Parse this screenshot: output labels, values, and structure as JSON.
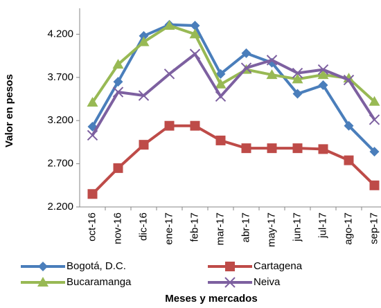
{
  "chart_data": {
    "type": "line",
    "x_label": "Meses y mercados",
    "y_label": "Valor en pesos",
    "categories": [
      "oct-16",
      "nov-16",
      "dic-16",
      "ene-17",
      "feb-17",
      "mar-17",
      "abr-17",
      "may-17",
      "jun-17",
      "jul-17",
      "ago-17",
      "sep-17"
    ],
    "series": [
      {
        "name": "Bogotá, D.C.",
        "color": "#4a7ebb",
        "marker": "diamond",
        "values": [
          3130,
          3650,
          4180,
          4310,
          4300,
          3740,
          3980,
          3870,
          3510,
          3610,
          3140,
          2840
        ]
      },
      {
        "name": "Cartagena",
        "color": "#be4b48",
        "marker": "square",
        "values": [
          2350,
          2650,
          2920,
          3140,
          3140,
          2970,
          2880,
          2880,
          2880,
          2870,
          2740,
          2450
        ]
      },
      {
        "name": "Bucaramanga",
        "color": "#98b954",
        "marker": "triangle",
        "values": [
          3410,
          3850,
          4110,
          4300,
          4200,
          3620,
          3790,
          3730,
          3680,
          3730,
          3690,
          3420
        ]
      },
      {
        "name": "Neiva",
        "color": "#7d60a0",
        "marker": "x",
        "values": [
          3030,
          3530,
          3490,
          3740,
          3970,
          3480,
          3810,
          3900,
          3750,
          3790,
          3670,
          3210
        ]
      }
    ],
    "ylim": [
      2200,
      4500
    ],
    "yticks": [
      {
        "value": 2200,
        "label": "2.200"
      },
      {
        "value": 2700,
        "label": "2.700"
      },
      {
        "value": 3200,
        "label": "3.200"
      },
      {
        "value": 3700,
        "label": "3.700"
      },
      {
        "value": 4200,
        "label": "4.200"
      }
    ],
    "grid": false,
    "legend": "bottom"
  }
}
